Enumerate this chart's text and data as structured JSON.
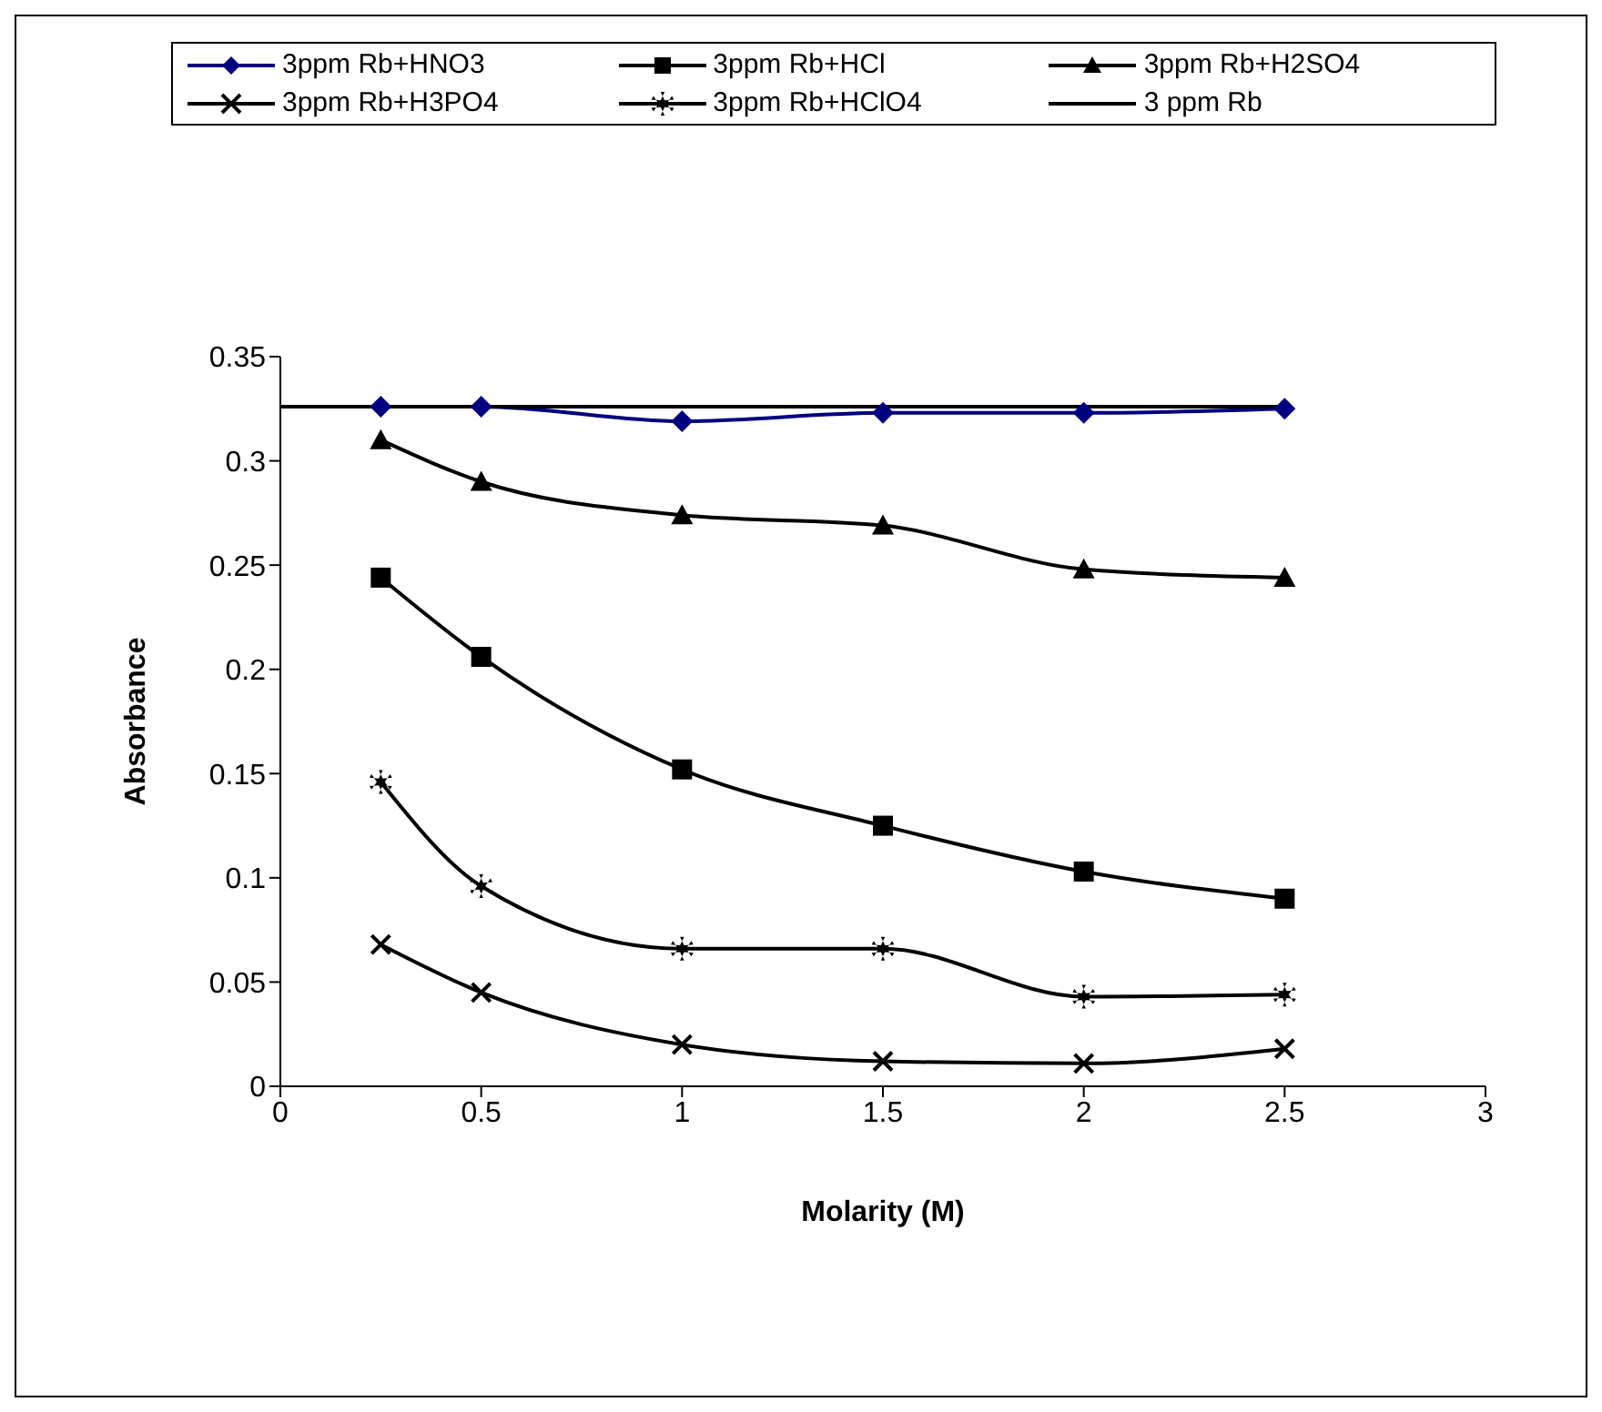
{
  "chart_data": {
    "type": "line",
    "xlabel": "Molarity (M)",
    "ylabel": "Absorbance",
    "xlim": [
      0,
      3
    ],
    "xticks": [
      0,
      0.5,
      1,
      1.5,
      2,
      2.5,
      3
    ],
    "ylim": [
      0,
      0.35
    ],
    "yticks": [
      0,
      0.05,
      0.1,
      0.15,
      0.2,
      0.25,
      0.3,
      0.35
    ],
    "x": [
      0.25,
      0.5,
      1,
      1.5,
      2,
      2.5
    ],
    "grid": false,
    "legend": "top",
    "line_style": "solid",
    "series": [
      {
        "name": "3ppm Rb+HNO3",
        "color": "#000080",
        "marker": "diamond",
        "values": [
          0.326,
          0.326,
          0.319,
          0.323,
          0.323,
          0.325
        ]
      },
      {
        "name": "3ppm Rb+HCl",
        "color": "#000000",
        "marker": "square",
        "values": [
          0.244,
          0.206,
          0.152,
          0.125,
          0.103,
          0.09
        ]
      },
      {
        "name": "3ppm Rb+H2SO4",
        "color": "#000000",
        "marker": "triangle",
        "values": [
          0.31,
          0.29,
          0.274,
          0.269,
          0.248,
          0.244
        ]
      },
      {
        "name": "3ppm Rb+H3PO4",
        "color": "#000000",
        "marker": "cross",
        "values": [
          0.068,
          0.045,
          0.02,
          0.012,
          0.011,
          0.018
        ]
      },
      {
        "name": "3ppm Rb+HClO4",
        "color": "#000000",
        "marker": "star",
        "values": [
          0.146,
          0.096,
          0.066,
          0.066,
          0.043,
          0.044
        ]
      },
      {
        "name": "3 ppm Rb",
        "color": "#000000",
        "marker": "none",
        "x": [
          0,
          2.5
        ],
        "values": [
          0.326,
          0.326
        ]
      }
    ]
  }
}
